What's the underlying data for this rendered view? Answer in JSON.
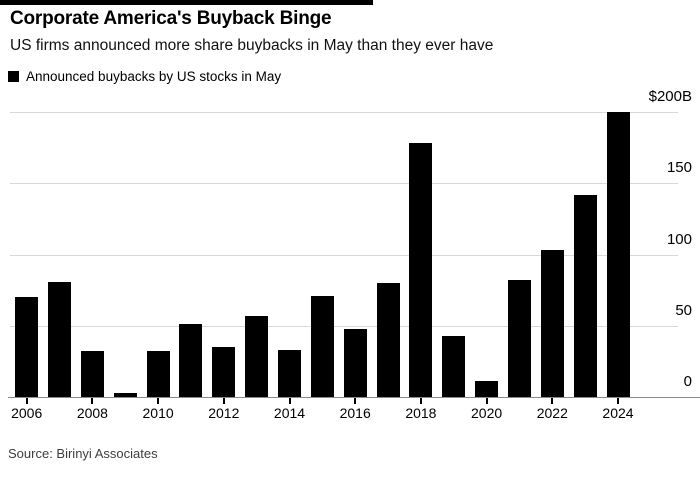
{
  "header": {
    "title": "Corporate America's Buyback Binge",
    "subtitle": "US firms announced more share buybacks in May than they ever have"
  },
  "legend": {
    "label": "Announced buybacks by US stocks in May",
    "swatch_color": "#000000"
  },
  "source": {
    "label": "Source: Birinyi Associates"
  },
  "colors": {
    "bar": "#000000",
    "grid": "#d8d8d8",
    "axis": "#8a8a8a",
    "text": "#000000"
  },
  "chart_data": {
    "type": "bar",
    "title": "Corporate America's Buyback Binge",
    "subtitle": "US firms announced more share buybacks in May than they ever have",
    "series_label": "Announced buybacks by US stocks in May",
    "unit": "USD billions",
    "categories": [
      2006,
      2007,
      2008,
      2009,
      2010,
      2011,
      2012,
      2013,
      2014,
      2015,
      2016,
      2017,
      2018,
      2019,
      2020,
      2021,
      2022,
      2023,
      2024
    ],
    "values": [
      70,
      81,
      32,
      2.5,
      32,
      51,
      35,
      57,
      33,
      71,
      48,
      80,
      178,
      43,
      11,
      82,
      103,
      142,
      200
    ],
    "x_tick_labels": [
      "2006",
      "2008",
      "2010",
      "2012",
      "2014",
      "2016",
      "2018",
      "2020",
      "2022",
      "2024"
    ],
    "y_ticks": [
      {
        "value": 0,
        "label": "0"
      },
      {
        "value": 50,
        "label": "50"
      },
      {
        "value": 100,
        "label": "100"
      },
      {
        "value": 150,
        "label": "150"
      },
      {
        "value": 200,
        "label": "$200B"
      }
    ],
    "ylim": [
      0,
      200
    ],
    "grid": true,
    "legend_position": "top-left",
    "source": "Source: Birinyi Associates"
  }
}
